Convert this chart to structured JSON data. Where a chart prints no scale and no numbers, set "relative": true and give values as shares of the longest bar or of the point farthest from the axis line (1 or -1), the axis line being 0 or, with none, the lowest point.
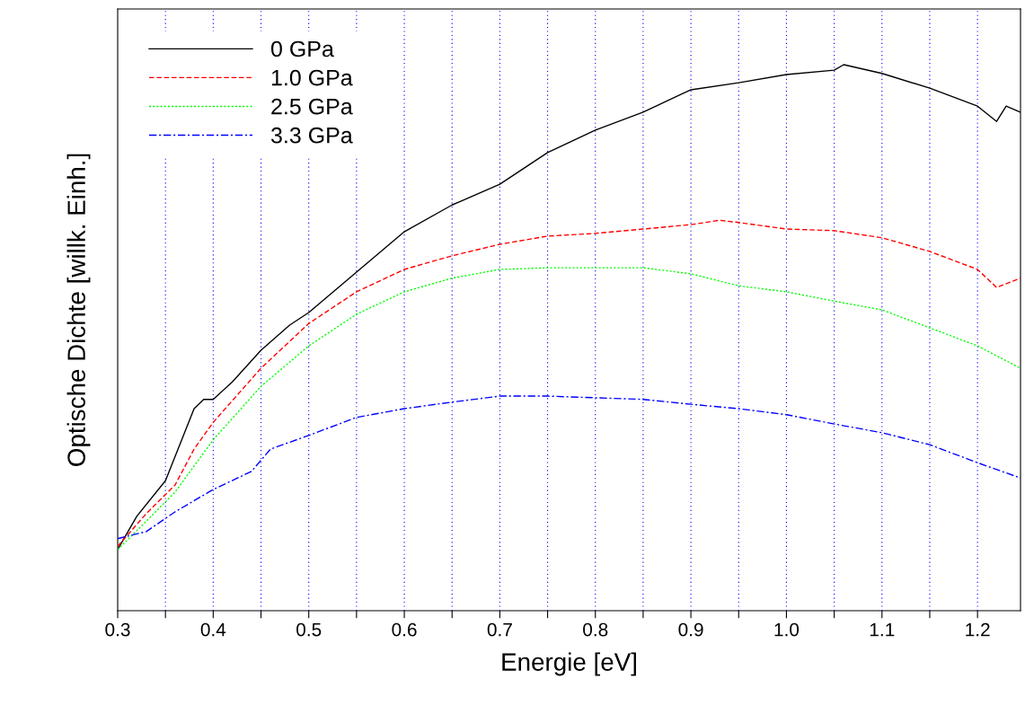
{
  "chart_data": {
    "type": "line",
    "relative": true,
    "xlabel": "Energie [eV]",
    "ylabel": "Optische Dichte [willk. Einh.]",
    "xlim": [
      0.3,
      1.245
    ],
    "xticks": [
      0.3,
      {
        "value": 0.35,
        "label": null
      },
      0.4,
      {
        "value": 0.45,
        "label": null
      },
      0.5,
      {
        "value": 0.55,
        "label": null
      },
      0.6,
      {
        "value": 0.65,
        "label": null
      },
      0.7,
      {
        "value": 0.75,
        "label": null
      },
      0.8,
      {
        "value": 0.85,
        "label": null
      },
      0.9,
      {
        "value": 0.95,
        "label": null
      },
      {
        "value": 1.0,
        "label": "1.0"
      },
      {
        "value": 1.05,
        "label": null
      },
      1.1,
      {
        "value": 1.15,
        "label": null
      },
      1.2
    ],
    "grid": "x",
    "legend": "top left",
    "marker": "none",
    "series": [
      {
        "name": "0 GPa",
        "color": "#000000",
        "line_style": "solid",
        "x": [
          0.3,
          0.32,
          0.35,
          0.38,
          0.39,
          0.4,
          0.42,
          0.45,
          0.48,
          0.5,
          0.55,
          0.6,
          0.65,
          0.7,
          0.75,
          0.8,
          0.85,
          0.9,
          0.95,
          1.0,
          1.05,
          1.06,
          1.1,
          1.15,
          1.2,
          1.22,
          1.23,
          1.245
        ],
        "values": [
          0.112,
          0.173,
          0.238,
          0.37,
          0.387,
          0.387,
          0.419,
          0.477,
          0.523,
          0.546,
          0.62,
          0.694,
          0.743,
          0.781,
          0.839,
          0.88,
          0.913,
          0.954,
          0.967,
          0.982,
          0.99,
          1.0,
          0.984,
          0.957,
          0.924,
          0.896,
          0.924,
          0.913
        ]
      },
      {
        "name": "1.0 GPa",
        "color": "#ff0000",
        "line_style": "dashed",
        "x": [
          0.3,
          0.33,
          0.36,
          0.38,
          0.4,
          0.45,
          0.5,
          0.55,
          0.6,
          0.65,
          0.7,
          0.75,
          0.8,
          0.85,
          0.9,
          0.93,
          0.95,
          1.0,
          1.05,
          1.1,
          1.15,
          1.2,
          1.22,
          1.245
        ],
        "values": [
          0.118,
          0.178,
          0.23,
          0.296,
          0.345,
          0.444,
          0.526,
          0.584,
          0.625,
          0.65,
          0.671,
          0.686,
          0.691,
          0.699,
          0.707,
          0.715,
          0.711,
          0.699,
          0.696,
          0.683,
          0.658,
          0.625,
          0.592,
          0.609
        ]
      },
      {
        "name": "2.5 GPa",
        "color": "#00ff00",
        "line_style": "dotted",
        "x": [
          0.3,
          0.33,
          0.36,
          0.4,
          0.45,
          0.5,
          0.55,
          0.6,
          0.65,
          0.7,
          0.75,
          0.8,
          0.85,
          0.9,
          0.95,
          1.0,
          1.05,
          1.1,
          1.15,
          1.2,
          1.245
        ],
        "values": [
          0.112,
          0.164,
          0.217,
          0.313,
          0.411,
          0.485,
          0.543,
          0.584,
          0.609,
          0.625,
          0.628,
          0.628,
          0.628,
          0.617,
          0.595,
          0.584,
          0.567,
          0.551,
          0.518,
          0.485,
          0.444
        ]
      },
      {
        "name": "3.3 GPa",
        "color": "#0000ff",
        "line_style": "dashdot",
        "x": [
          0.3,
          0.33,
          0.36,
          0.4,
          0.44,
          0.46,
          0.5,
          0.55,
          0.6,
          0.65,
          0.7,
          0.75,
          0.8,
          0.85,
          0.9,
          0.95,
          1.0,
          1.05,
          1.1,
          1.15,
          1.2,
          1.245
        ],
        "values": [
          0.132,
          0.145,
          0.181,
          0.222,
          0.255,
          0.296,
          0.321,
          0.354,
          0.37,
          0.382,
          0.393,
          0.393,
          0.39,
          0.387,
          0.378,
          0.37,
          0.359,
          0.342,
          0.326,
          0.304,
          0.271,
          0.243
        ]
      }
    ]
  }
}
